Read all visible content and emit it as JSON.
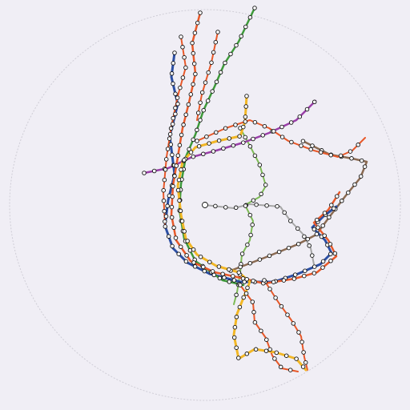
{
  "map": {
    "background": "#f0eef5",
    "boundary_circle_color": "#cfcdd6",
    "station_fill": "#ffffff",
    "station_stroke": "#111111",
    "lines": [
      {
        "id": "orange",
        "color": "#e8592a"
      },
      {
        "id": "green",
        "color": "#3e9a3a"
      },
      {
        "id": "light-green",
        "color": "#7dbb55"
      },
      {
        "id": "blue",
        "color": "#2c4fa3"
      },
      {
        "id": "yellow",
        "color": "#f2b726"
      },
      {
        "id": "purple",
        "color": "#9a3fa8"
      },
      {
        "id": "brown",
        "color": "#8a6a52"
      },
      {
        "id": "gray",
        "color": "#a6a6a6"
      }
    ]
  }
}
